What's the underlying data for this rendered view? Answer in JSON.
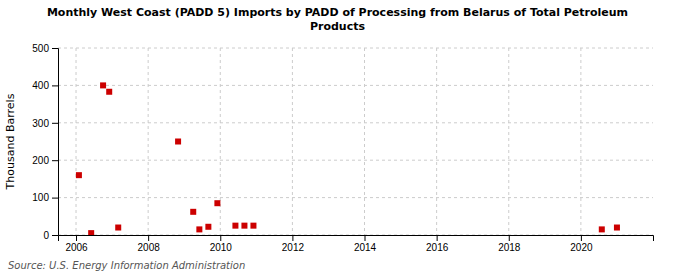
{
  "chart_data": {
    "type": "scatter",
    "title": "Monthly West Coast (PADD 5) Imports by PADD of Processing from Belarus of Total Petroleum\nProducts",
    "y_label": "Thousand Barrels",
    "annotations": [
      "Source: U.S. Energy Information Administration"
    ],
    "color": "#cc0000",
    "marker": "square",
    "grid": true,
    "xlim": [
      2005.5,
      2022.0
    ],
    "ylim": [
      0,
      500
    ],
    "xticks": [
      2006,
      2008,
      2010,
      2012,
      2014,
      2016,
      2018,
      2020
    ],
    "yticks": [
      0,
      100,
      200,
      300,
      400,
      500
    ],
    "x": [
      2006.08,
      2006.42,
      2006.75,
      2006.92,
      2007.17,
      2008.83,
      2009.25,
      2009.42,
      2009.67,
      2009.92,
      2010.42,
      2010.67,
      2010.92,
      2020.58,
      2021.0
    ],
    "values": [
      160,
      5,
      400,
      383,
      20,
      250,
      62,
      15,
      22,
      85,
      25,
      25,
      25,
      15,
      20
    ]
  }
}
